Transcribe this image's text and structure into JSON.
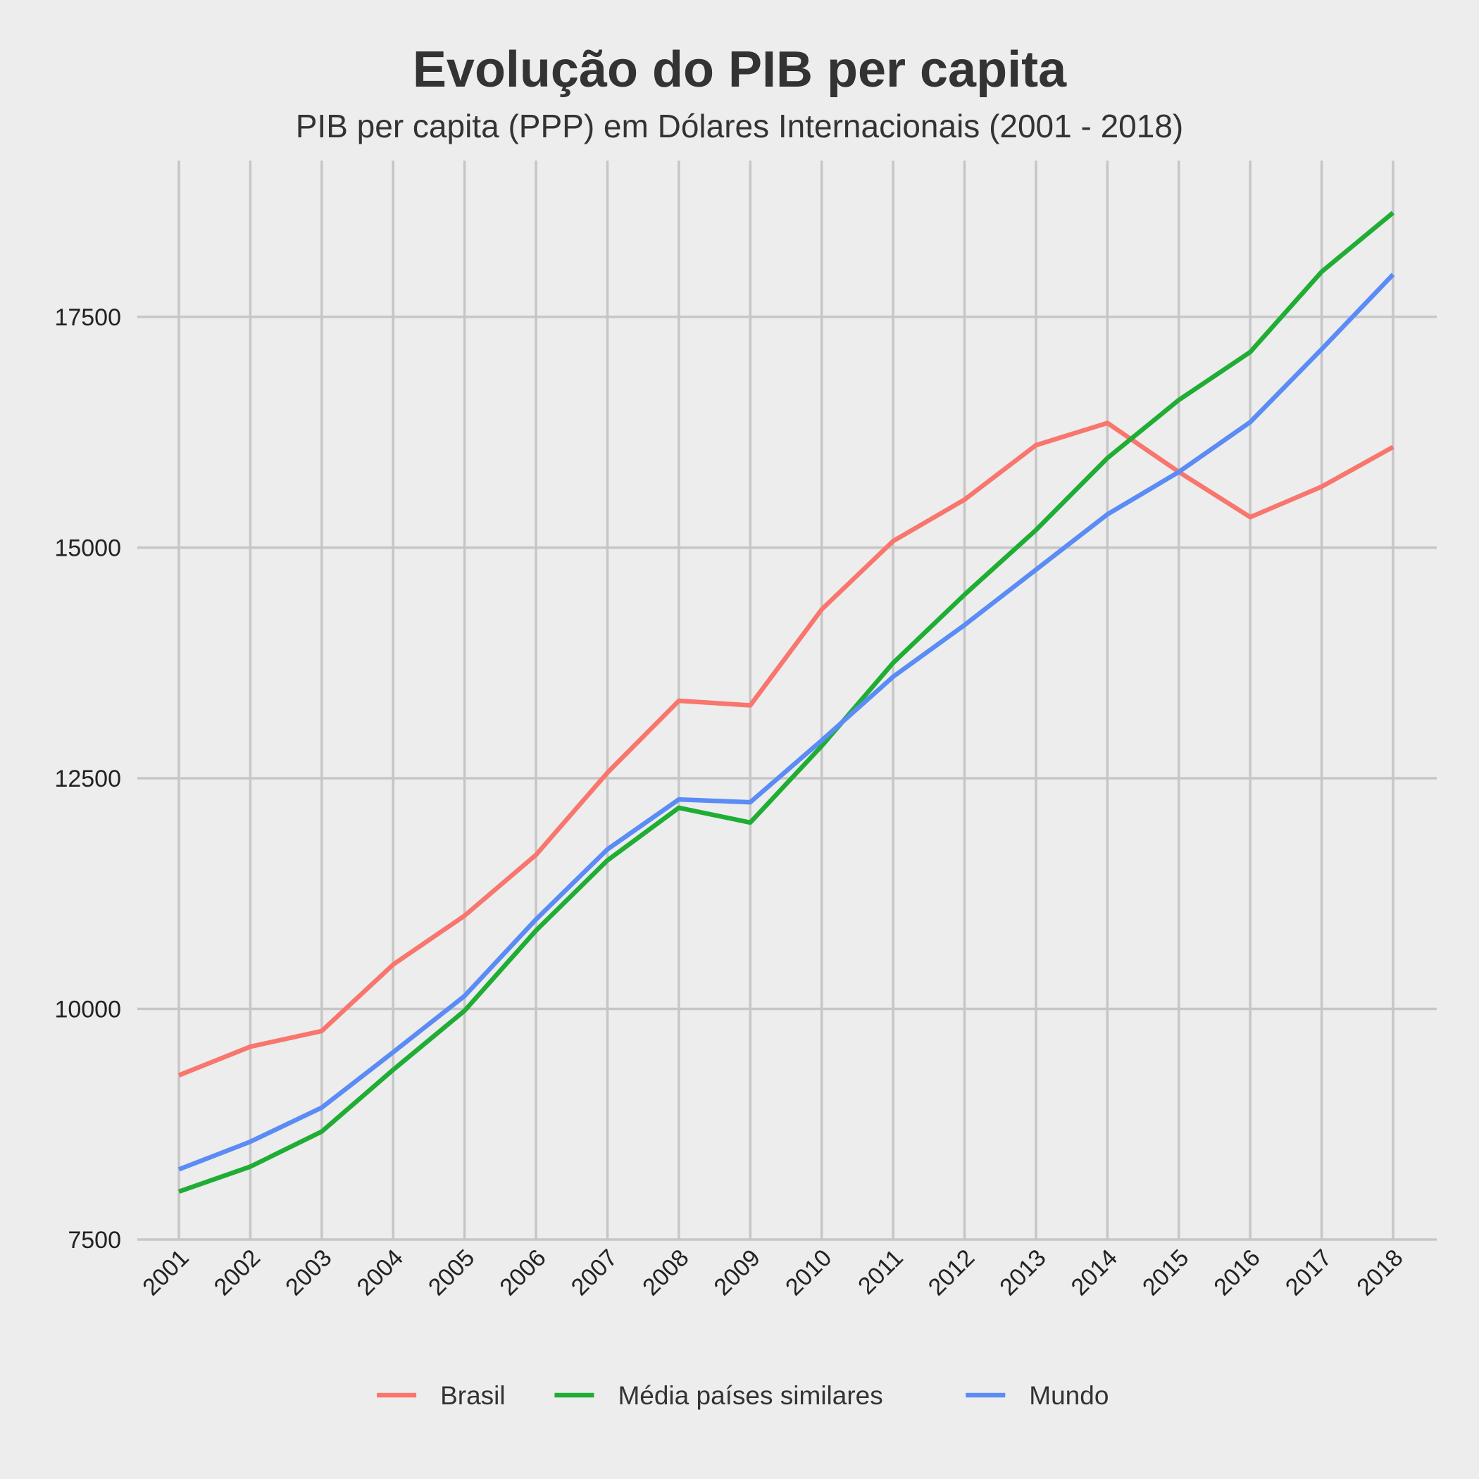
{
  "chart_data": {
    "type": "line",
    "title": "Evolução do PIB per capita",
    "subtitle": "PIB per capita (PPP) em Dólares Internacionais (2001 - 2018)",
    "xlabel": "",
    "ylabel": "",
    "x": [
      "2001",
      "2002",
      "2003",
      "2004",
      "2005",
      "2006",
      "2007",
      "2008",
      "2009",
      "2010",
      "2011",
      "2012",
      "2013",
      "2014",
      "2015",
      "2016",
      "2017",
      "2018"
    ],
    "yticks": [
      7500,
      10000,
      12500,
      15000,
      17500
    ],
    "ylim": [
      7500,
      19200
    ],
    "grid": true,
    "legend_position": "bottom",
    "series": [
      {
        "name": "Brasil",
        "color": "#f8766d",
        "values": [
          9280,
          9590,
          9760,
          10480,
          11010,
          11670,
          12560,
          13340,
          13290,
          14330,
          15070,
          15520,
          16110,
          16350,
          15820,
          15330,
          15660,
          16090
        ]
      },
      {
        "name": "Média países similares",
        "color": "#1fad34",
        "values": [
          8020,
          8290,
          8670,
          9340,
          9980,
          10850,
          11610,
          12180,
          12020,
          12850,
          13750,
          14490,
          15190,
          15970,
          16600,
          17120,
          17990,
          18630
        ]
      },
      {
        "name": "Mundo",
        "color": "#5b8cf5",
        "values": [
          8260,
          8560,
          8930,
          9530,
          10140,
          10970,
          11730,
          12270,
          12240,
          12910,
          13600,
          14160,
          14760,
          15360,
          15820,
          16360,
          17150,
          17960
        ]
      }
    ]
  }
}
